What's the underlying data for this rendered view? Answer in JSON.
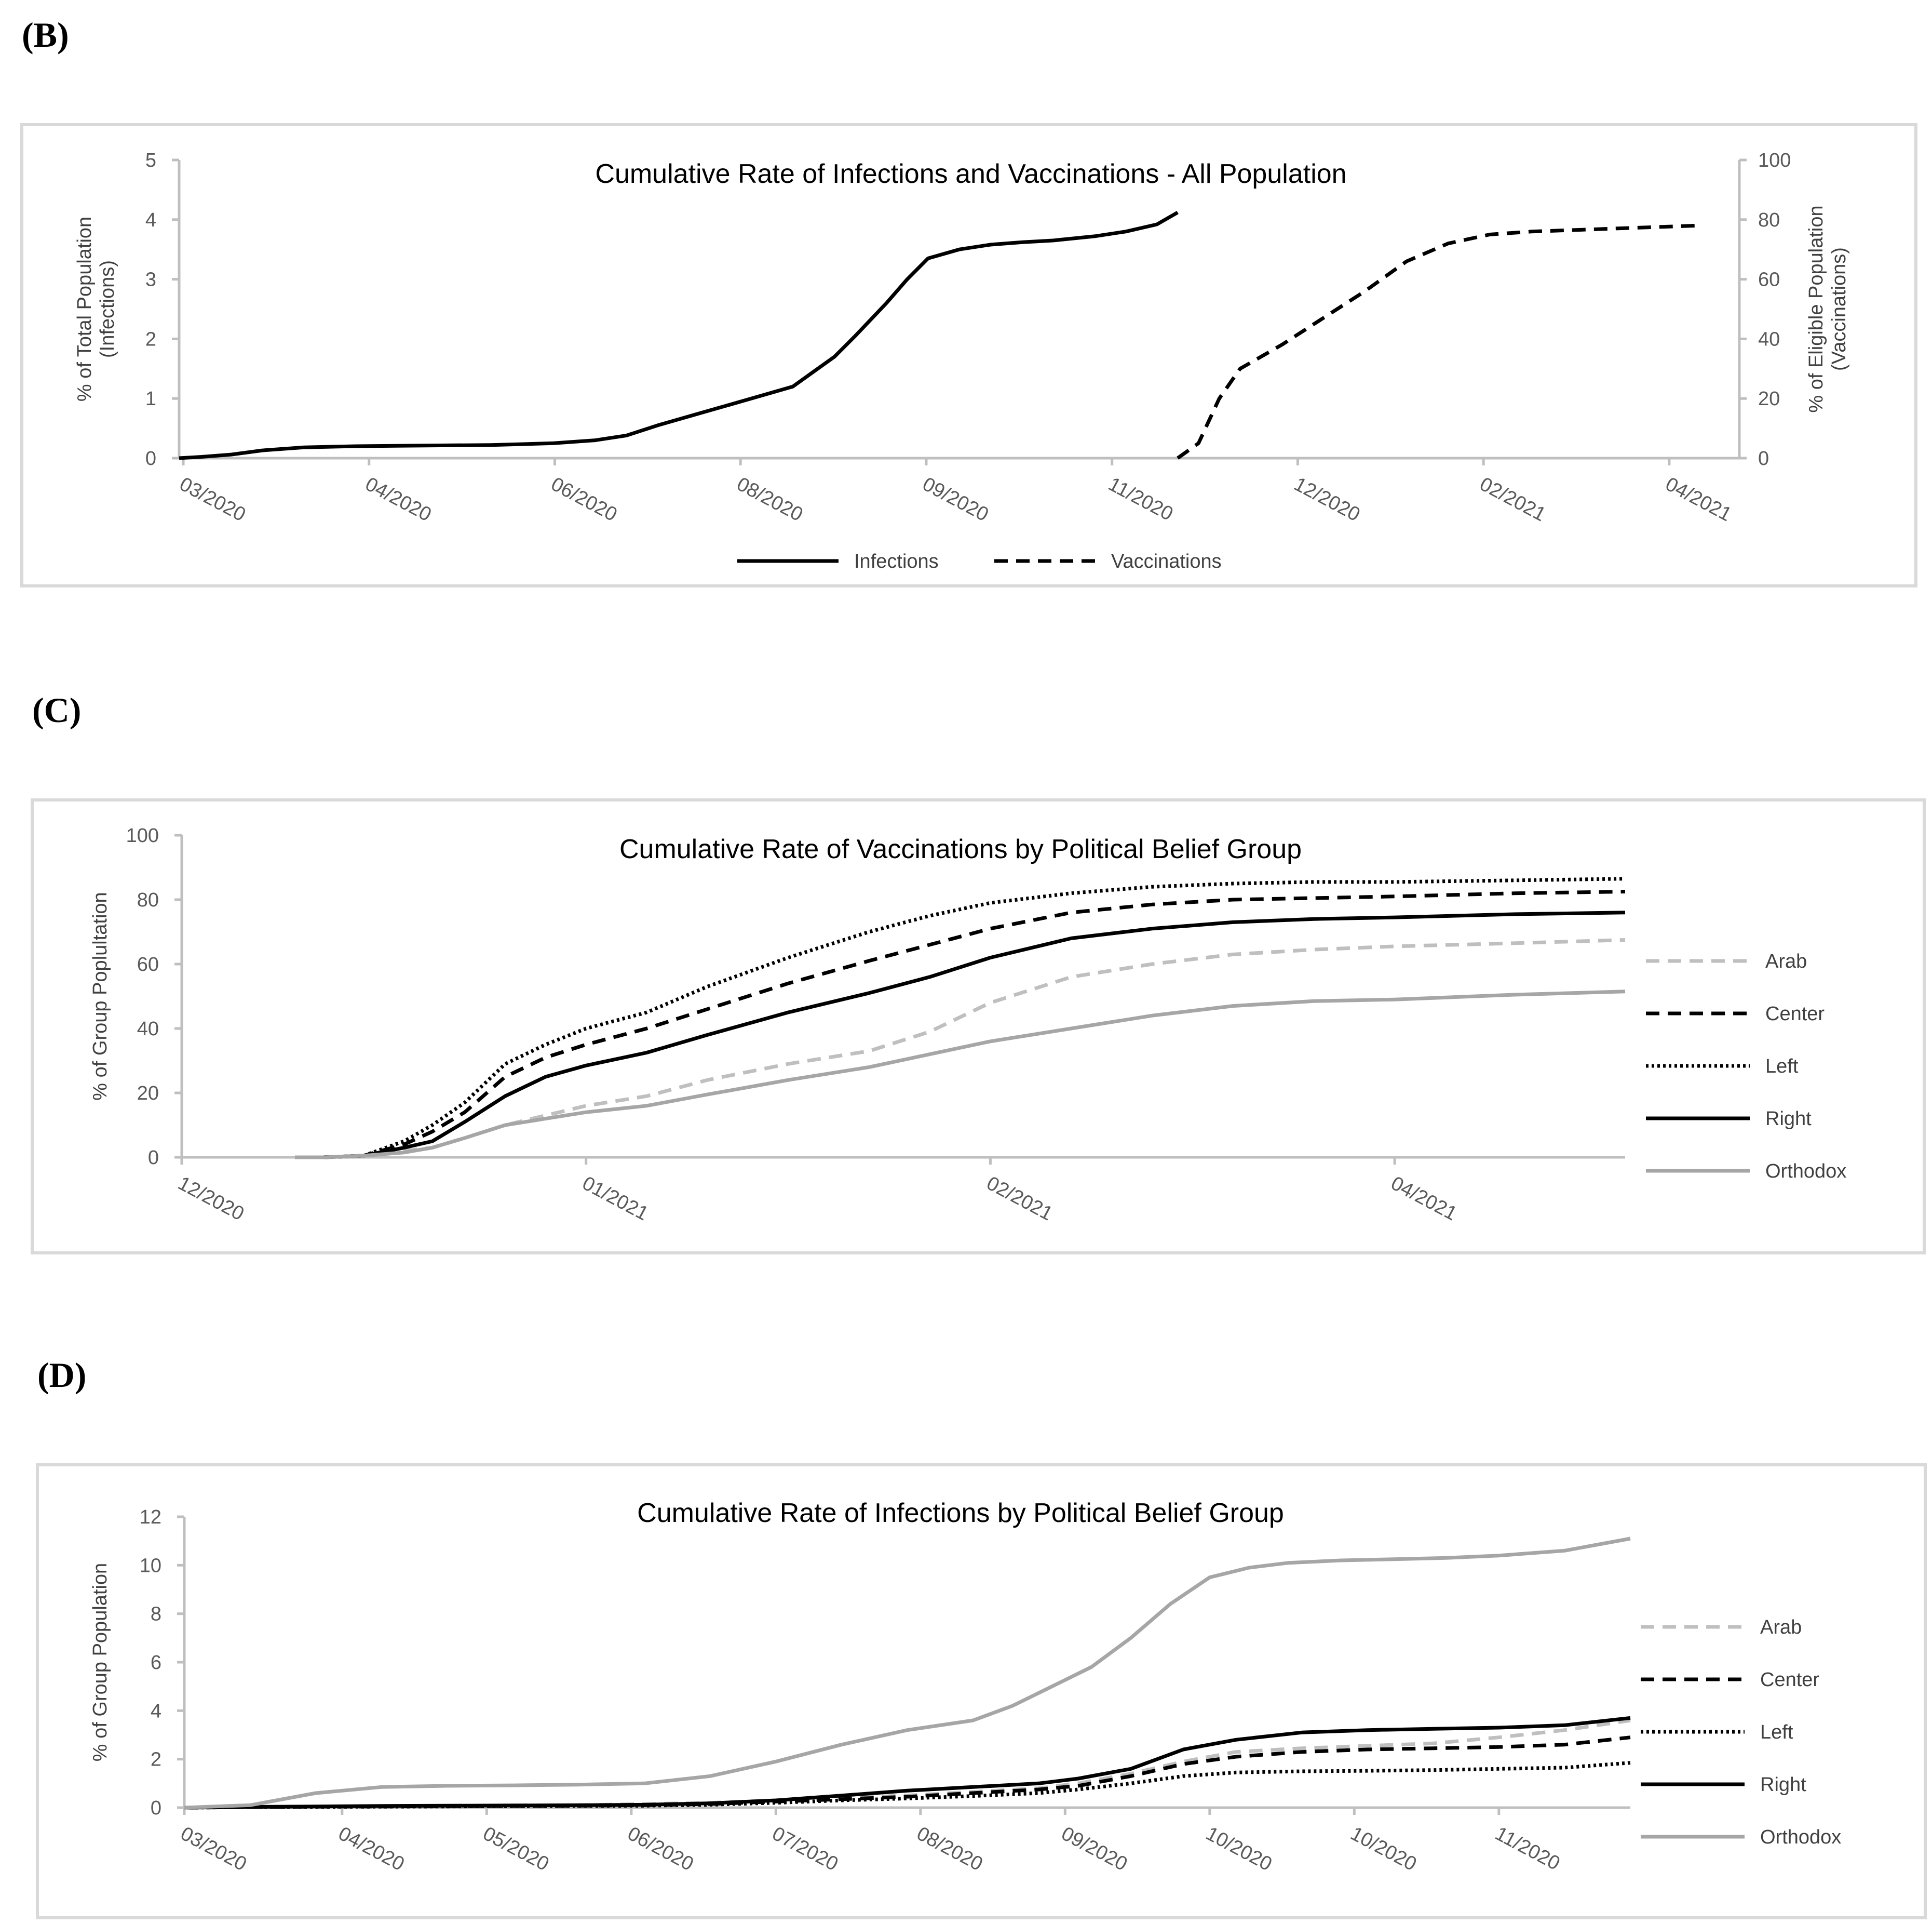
{
  "panels": {
    "b_label": "(B)",
    "c_label": "(C)",
    "d_label": "(D)"
  },
  "chart_data": [
    {
      "id": "B",
      "type": "line",
      "title": "Cumulative Rate of Infections and Vaccinations - All Population",
      "ylabel_left": [
        "% of Total Population",
        "(Infections)"
      ],
      "ylabel_right": [
        "% of Eligible Population",
        "(Vaccinations)"
      ],
      "xlabel": "",
      "x_tick_labels": [
        "03/2020",
        "04/2020",
        "06/2020",
        "08/2020",
        "09/2020",
        "11/2020",
        "12/2020",
        "02/2021",
        "04/2021"
      ],
      "ylim_left": [
        0,
        5
      ],
      "yticks_left": [
        0,
        1,
        2,
        3,
        4,
        5
      ],
      "ylim_right": [
        0,
        100
      ],
      "yticks_right": [
        0,
        20,
        40,
        60,
        80,
        100
      ],
      "legend": [
        "Infections",
        "Vaccinations"
      ],
      "series": [
        {
          "name": "Infections",
          "axis": "left",
          "style": "solid",
          "color": "#000000",
          "x": [
            0,
            0.2,
            0.5,
            0.8,
            1.2,
            1.7,
            2.3,
            3.0,
            3.6,
            4.0,
            4.3,
            4.6,
            5.0,
            5.3,
            5.6,
            5.9,
            6.1,
            6.3,
            6.5,
            6.8,
            7.0,
            7.2,
            7.5,
            7.8,
            8.1,
            8.4,
            8.8,
            9.1,
            9.4,
            9.6
          ],
          "values": [
            0,
            0.02,
            0.06,
            0.13,
            0.18,
            0.2,
            0.21,
            0.22,
            0.25,
            0.3,
            0.38,
            0.55,
            0.75,
            0.9,
            1.05,
            1.2,
            1.45,
            1.7,
            2.05,
            2.6,
            3.0,
            3.35,
            3.5,
            3.58,
            3.62,
            3.65,
            3.72,
            3.8,
            3.92,
            4.12
          ]
        },
        {
          "name": "Vaccinations",
          "axis": "right",
          "style": "dashed",
          "color": "#000000",
          "x": [
            9.6,
            9.8,
            10.0,
            10.2,
            10.6,
            11.0,
            11.4,
            11.8,
            12.2,
            12.6,
            13.0,
            13.4,
            13.8,
            14.2,
            14.6
          ],
          "values": [
            0,
            5,
            20,
            30,
            38,
            47,
            56,
            66,
            72,
            75,
            76,
            76.5,
            77,
            77.5,
            78
          ]
        }
      ]
    },
    {
      "id": "C",
      "type": "line",
      "title": "Cumulative Rate of Vaccinations by Political Belief Group",
      "ylabel": "% of Group Poplultation",
      "xlabel": "",
      "x_tick_labels": [
        "12/2020",
        "01/2021",
        "02/2021",
        "04/2021"
      ],
      "ylim": [
        0,
        100
      ],
      "yticks": [
        0,
        20,
        40,
        60,
        80,
        100
      ],
      "legend": [
        "Arab",
        "Center",
        "Left",
        "Right",
        "Orthodox"
      ],
      "series": [
        {
          "name": "Arab",
          "style": "dashed",
          "color": "#bfbfbf",
          "x": [
            0.28,
            0.35,
            0.45,
            0.55,
            0.62,
            0.7,
            0.8,
            0.9,
            1.0,
            1.15,
            1.3,
            1.5,
            1.7,
            1.85,
            2.0,
            2.2,
            2.4,
            2.6,
            2.8,
            3.0,
            3.3,
            3.57
          ],
          "values": [
            0,
            0,
            0.5,
            2,
            3,
            6,
            10,
            13,
            16,
            19,
            24,
            29,
            33,
            39,
            48,
            56,
            60,
            63,
            64.5,
            65.5,
            66.5,
            67.5
          ]
        },
        {
          "name": "Center",
          "style": "dashed",
          "color": "#000000",
          "x": [
            0.28,
            0.35,
            0.45,
            0.55,
            0.62,
            0.7,
            0.8,
            0.9,
            1.0,
            1.15,
            1.3,
            1.5,
            1.7,
            1.85,
            2.0,
            2.2,
            2.4,
            2.6,
            2.8,
            3.0,
            3.3,
            3.57
          ],
          "values": [
            0,
            0,
            0.5,
            4,
            8,
            14,
            25,
            31,
            35,
            40,
            46,
            54,
            61,
            66,
            71,
            76,
            78.5,
            80,
            80.5,
            81,
            82,
            82.5
          ]
        },
        {
          "name": "Left",
          "style": "dotted",
          "color": "#000000",
          "x": [
            0.28,
            0.35,
            0.45,
            0.55,
            0.62,
            0.7,
            0.8,
            0.9,
            1.0,
            1.15,
            1.3,
            1.5,
            1.7,
            1.85,
            2.0,
            2.2,
            2.4,
            2.6,
            2.8,
            3.0,
            3.3,
            3.57
          ],
          "values": [
            0,
            0,
            0.5,
            5,
            10,
            17,
            29,
            35,
            40,
            45,
            53,
            62,
            70,
            75,
            79,
            82,
            84,
            85,
            85.5,
            85.5,
            86,
            86.5
          ]
        },
        {
          "name": "Right",
          "style": "solid",
          "color": "#000000",
          "x": [
            0.28,
            0.35,
            0.45,
            0.55,
            0.62,
            0.7,
            0.8,
            0.9,
            1.0,
            1.15,
            1.3,
            1.5,
            1.7,
            1.85,
            2.0,
            2.2,
            2.4,
            2.6,
            2.8,
            3.0,
            3.3,
            3.57
          ],
          "values": [
            0,
            0,
            0.5,
            3,
            5,
            11,
            19,
            25,
            28.5,
            32.5,
            38,
            45,
            51,
            56,
            62,
            68,
            71,
            73,
            74,
            74.5,
            75.5,
            76
          ]
        },
        {
          "name": "Orthodox",
          "style": "solid",
          "color": "#a6a6a6",
          "x": [
            0.28,
            0.35,
            0.45,
            0.55,
            0.62,
            0.7,
            0.8,
            0.9,
            1.0,
            1.15,
            1.3,
            1.5,
            1.7,
            1.85,
            2.0,
            2.2,
            2.4,
            2.6,
            2.8,
            3.0,
            3.3,
            3.57
          ],
          "values": [
            0,
            0,
            0.5,
            1.5,
            3,
            6,
            10,
            12,
            14,
            16,
            19.5,
            24,
            28,
            32,
            36,
            40,
            44,
            47,
            48.5,
            49,
            50.5,
            51.5
          ]
        }
      ]
    },
    {
      "id": "D",
      "type": "line",
      "title": "Cumulative Rate of Infections by Political Belief Group",
      "ylabel": "% of Group Population",
      "xlabel": "",
      "x_tick_labels": [
        "03/2020",
        "04/2020",
        "05/2020",
        "06/2020",
        "07/2020",
        "08/2020",
        "09/2020",
        "10/2020",
        "10/2020",
        "11/2020"
      ],
      "ylim": [
        0,
        12
      ],
      "yticks": [
        0,
        2,
        4,
        6,
        8,
        10,
        12
      ],
      "legend": [
        "Arab",
        "Center",
        "Left",
        "Right",
        "Orthodox"
      ],
      "series": [
        {
          "name": "Arab",
          "style": "dashed",
          "color": "#bfbfbf",
          "x": [
            0,
            0.5,
            1,
            1.5,
            2,
            2.5,
            3,
            3.5,
            4,
            4.5,
            5,
            5.5,
            6,
            6.5,
            6.8,
            7.2,
            7.6,
            8,
            8.5,
            9,
            9.5,
            10,
            10.5,
            11
          ],
          "values": [
            0,
            0.02,
            0.04,
            0.05,
            0.06,
            0.08,
            0.1,
            0.15,
            0.2,
            0.3,
            0.4,
            0.5,
            0.65,
            0.8,
            1.0,
            1.4,
            1.9,
            2.3,
            2.45,
            2.55,
            2.65,
            2.9,
            3.2,
            3.6
          ]
        },
        {
          "name": "Center",
          "style": "dashed",
          "color": "#000000",
          "x": [
            0,
            0.5,
            1,
            1.5,
            2,
            2.5,
            3,
            3.5,
            4,
            4.5,
            5,
            5.5,
            6,
            6.5,
            6.8,
            7.2,
            7.6,
            8,
            8.5,
            9,
            9.5,
            10,
            10.5,
            11
          ],
          "values": [
            0,
            0.02,
            0.04,
            0.05,
            0.06,
            0.07,
            0.08,
            0.1,
            0.15,
            0.25,
            0.35,
            0.45,
            0.6,
            0.75,
            0.9,
            1.3,
            1.8,
            2.1,
            2.3,
            2.4,
            2.45,
            2.5,
            2.6,
            2.9
          ]
        },
        {
          "name": "Left",
          "style": "dotted",
          "color": "#000000",
          "x": [
            0,
            0.5,
            1,
            1.5,
            2,
            2.5,
            3,
            3.5,
            4,
            4.5,
            5,
            5.5,
            6,
            6.5,
            6.8,
            7.2,
            7.6,
            8,
            8.5,
            9,
            9.5,
            10,
            10.5,
            11
          ],
          "values": [
            0,
            0.02,
            0.03,
            0.04,
            0.05,
            0.06,
            0.07,
            0.08,
            0.12,
            0.2,
            0.3,
            0.38,
            0.48,
            0.6,
            0.75,
            1.0,
            1.3,
            1.45,
            1.5,
            1.52,
            1.55,
            1.6,
            1.65,
            1.85
          ]
        },
        {
          "name": "Right",
          "style": "solid",
          "color": "#000000",
          "x": [
            0,
            0.5,
            1,
            1.5,
            2,
            2.5,
            3,
            3.5,
            4,
            4.5,
            5,
            5.5,
            6,
            6.5,
            6.8,
            7.2,
            7.6,
            8,
            8.5,
            9,
            9.5,
            10,
            10.5,
            11
          ],
          "values": [
            0,
            0.03,
            0.05,
            0.07,
            0.08,
            0.09,
            0.1,
            0.12,
            0.18,
            0.3,
            0.5,
            0.7,
            0.85,
            1.0,
            1.2,
            1.6,
            2.4,
            2.8,
            3.1,
            3.2,
            3.25,
            3.3,
            3.4,
            3.7
          ]
        },
        {
          "name": "Orthodox",
          "style": "solid",
          "color": "#a6a6a6",
          "x": [
            0,
            0.5,
            1,
            1.5,
            2,
            2.5,
            3,
            3.5,
            4,
            4.5,
            5,
            5.5,
            6,
            6.3,
            6.6,
            6.9,
            7.2,
            7.5,
            7.8,
            8.1,
            8.4,
            8.8,
            9.2,
            9.6,
            10,
            10.5,
            11
          ],
          "values": [
            0,
            0.1,
            0.6,
            0.85,
            0.9,
            0.92,
            0.95,
            1.0,
            1.3,
            1.9,
            2.6,
            3.2,
            3.6,
            4.2,
            5.0,
            5.8,
            7.0,
            8.4,
            9.5,
            9.9,
            10.1,
            10.2,
            10.25,
            10.3,
            10.4,
            10.6,
            11.1
          ]
        }
      ]
    }
  ]
}
